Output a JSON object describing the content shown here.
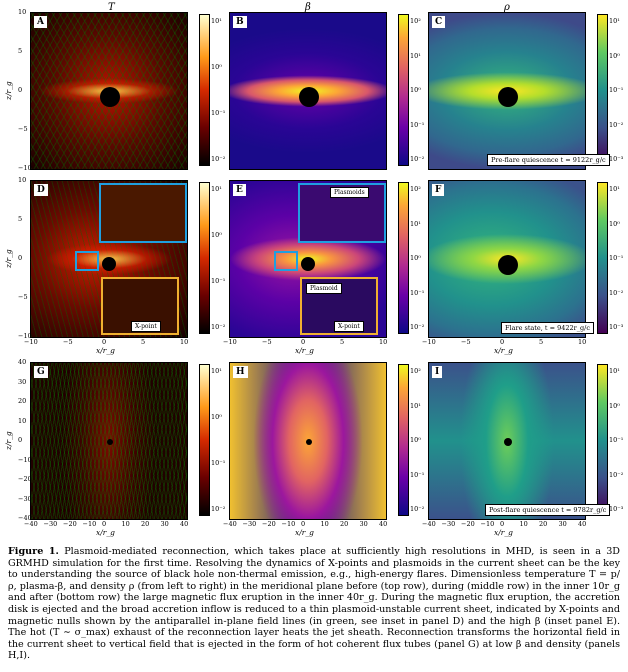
{
  "column_titles": [
    "T",
    "β",
    "ρ"
  ],
  "panel_labels": [
    "A",
    "B",
    "C",
    "D",
    "E",
    "F",
    "G",
    "H",
    "I"
  ],
  "axes": {
    "xlabel": "x/r_g",
    "ylabel": "z/r_g",
    "inner_ticks": [
      "−10",
      "−5",
      "0",
      "5",
      "10"
    ],
    "outer_ticks": [
      "−40",
      "−30",
      "−20",
      "−10",
      "0",
      "10",
      "20",
      "30",
      "40"
    ]
  },
  "colorbars": {
    "T": [
      "10¹",
      "10⁰",
      "10⁻¹",
      "10⁻²"
    ],
    "beta": [
      "10²",
      "10¹",
      "10⁰",
      "10⁻¹",
      "10⁻²"
    ],
    "rho": [
      "10¹",
      "10⁰",
      "10⁻¹",
      "10⁻²",
      "10⁻³"
    ]
  },
  "annotations": {
    "plasmoids": "Plasmoids",
    "plasmoid": "Plasmoid",
    "xpoint": "X-point"
  },
  "stamps": {
    "top": "Pre-flare quiescence t = 9122r_g/c",
    "middle": "Flare state, t = 9422r_g/c",
    "bottom": "Post-flare quiescence t = 9782r_g/c"
  },
  "colors": {
    "inset_blue": "#1f9fe0",
    "inset_orange": "#f0b030",
    "field_lines": "#00a000"
  },
  "caption": {
    "label": "Figure 1.",
    "text": "Plasmoid-mediated reconnection, which takes place at sufficiently high resolutions in MHD, is seen in a 3D GRMHD simulation for the first time. Resolving the dynamics of X-points and plasmoids in the current sheet can be the key to understanding the source of black hole non-thermal emission, e.g., high-energy flares. Dimensionless temperature T = p/ρ, plasma-β, and density ρ (from left to right) in the meridional plane before (top row), during (middle row) in the inner 10r_g and after (bottom row) the large magnetic flux eruption in the inner 40r_g. During the magnetic flux eruption, the accretion disk is ejected and the broad accretion inflow is reduced to a thin plasmoid-unstable current sheet, indicated by X-points and magnetic nulls shown by the antiparallel in-plane field lines (in green, see inset in panel D) and the high β (inset panel E). The hot (T ∼ σ_max) exhaust of the reconnection layer heats the jet sheath. Reconnection transforms the horizontal field in the current sheet to vertical field that is ejected in the form of hot coherent flux tubes (panel G) at low β and density (panels H,I)."
  }
}
